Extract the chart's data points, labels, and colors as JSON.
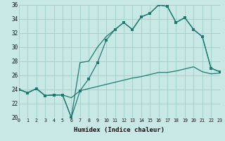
{
  "xlabel": "Humidex (Indice chaleur)",
  "bg_color": "#c8e8e5",
  "grid_color": "#9ecfcb",
  "line_color": "#1e7a70",
  "xlim": [
    0,
    23
  ],
  "ylim": [
    20,
    36
  ],
  "x_ticks": [
    0,
    1,
    2,
    3,
    4,
    5,
    6,
    7,
    8,
    9,
    10,
    11,
    12,
    13,
    14,
    15,
    16,
    17,
    18,
    19,
    20,
    21,
    22,
    23
  ],
  "y_ticks": [
    20,
    22,
    24,
    26,
    28,
    30,
    32,
    34,
    36
  ],
  "line1_x": [
    0,
    1,
    2,
    3,
    4,
    5,
    6,
    7,
    8,
    9,
    10,
    11,
    12,
    13,
    14,
    15,
    16,
    17,
    18,
    19,
    20,
    21,
    22,
    23
  ],
  "line1_y": [
    24.0,
    23.5,
    24.1,
    23.1,
    23.2,
    23.2,
    22.8,
    23.8,
    24.1,
    24.4,
    24.7,
    25.0,
    25.3,
    25.6,
    25.8,
    26.1,
    26.4,
    26.4,
    26.6,
    26.9,
    27.2,
    26.5,
    26.2,
    26.3
  ],
  "line2_x": [
    0,
    1,
    2,
    3,
    4,
    5,
    6,
    7,
    8,
    9,
    10,
    11,
    12,
    13,
    14,
    15,
    16,
    17,
    18,
    19,
    20,
    21,
    22,
    23
  ],
  "line2_y": [
    24.0,
    23.5,
    24.1,
    23.1,
    23.2,
    23.2,
    20.0,
    23.8,
    25.5,
    27.8,
    31.0,
    32.5,
    33.5,
    32.5,
    34.3,
    34.8,
    36.0,
    35.8,
    33.5,
    34.2,
    32.5,
    31.5,
    27.0,
    26.5
  ],
  "line3_x": [
    0,
    1,
    2,
    3,
    4,
    5,
    6,
    7,
    8,
    9,
    10,
    11,
    12,
    13,
    14,
    15,
    16,
    17,
    18,
    19,
    20,
    21,
    22,
    23
  ],
  "line3_y": [
    24.0,
    23.5,
    24.1,
    23.1,
    23.2,
    23.2,
    20.0,
    27.8,
    28.0,
    30.0,
    31.5,
    32.5,
    33.5,
    32.5,
    34.3,
    34.8,
    36.0,
    35.8,
    33.5,
    34.2,
    32.5,
    31.5,
    27.0,
    26.5
  ],
  "marker_x": [
    0,
    1,
    2,
    3,
    4,
    5,
    6,
    7,
    8,
    9,
    10,
    11,
    12,
    13,
    14,
    15,
    16,
    17,
    18,
    19,
    20,
    21,
    22,
    23
  ],
  "marker_y": [
    24.0,
    23.5,
    24.1,
    23.1,
    23.2,
    23.2,
    20.0,
    23.8,
    25.5,
    27.8,
    31.0,
    32.5,
    33.5,
    32.5,
    34.3,
    34.8,
    36.0,
    35.8,
    33.5,
    34.2,
    32.5,
    31.5,
    27.0,
    26.5
  ]
}
